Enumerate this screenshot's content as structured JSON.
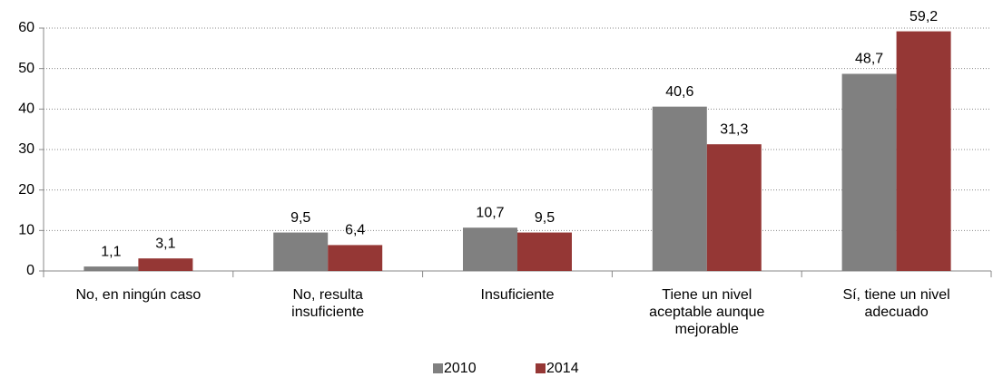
{
  "chart_data": {
    "type": "bar",
    "categories": [
      "No, en ningún caso",
      "No, resulta insuficiente",
      "Insuficiente",
      "Tiene un nivel aceptable aunque mejorable",
      "Sí, tiene un nivel adecuado"
    ],
    "series": [
      {
        "name": "2010",
        "color": "#808080",
        "values": [
          1.1,
          9.5,
          10.7,
          40.6,
          48.7
        ],
        "value_labels": [
          "1,1",
          "9,5",
          "10,7",
          "40,6",
          "48,7"
        ]
      },
      {
        "name": "2014",
        "color": "#953735",
        "values": [
          3.1,
          6.4,
          9.5,
          31.3,
          59.2
        ],
        "value_labels": [
          "3,1",
          "6,4",
          "9,5",
          "31,3",
          "59,2"
        ]
      }
    ],
    "ylim": [
      0,
      60
    ],
    "yticks": [
      0,
      10,
      20,
      30,
      40,
      50,
      60
    ],
    "grid": true,
    "legend": "bottom"
  }
}
